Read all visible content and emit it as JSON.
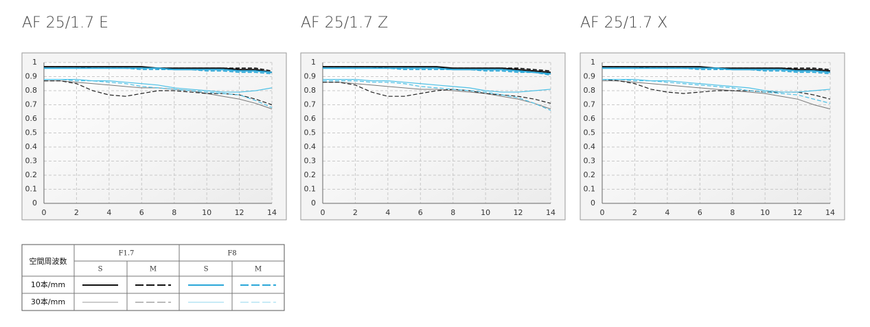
{
  "chart_data": [
    {
      "type": "line",
      "title": "AF 25/1.7 E",
      "x": [
        0,
        1,
        2,
        3,
        4,
        5,
        6,
        7,
        8,
        9,
        10,
        11,
        12,
        13,
        14
      ],
      "xlim": [
        0,
        14
      ],
      "xticks": [
        0,
        2,
        4,
        6,
        8,
        10,
        12,
        14
      ],
      "ylim": [
        0,
        1
      ],
      "yticks": [
        0,
        0.1,
        0.2,
        0.3,
        0.4,
        0.5,
        0.6,
        0.7,
        0.8,
        0.9,
        1
      ],
      "grid": true,
      "series": [
        {
          "color": "#111111",
          "dash": false,
          "width": 2,
          "values": [
            0.97,
            0.97,
            0.97,
            0.97,
            0.97,
            0.97,
            0.97,
            0.96,
            0.96,
            0.96,
            0.96,
            0.96,
            0.95,
            0.95,
            0.93
          ]
        },
        {
          "color": "#111111",
          "dash": true,
          "width": 1.6,
          "values": [
            0.97,
            0.97,
            0.97,
            0.96,
            0.96,
            0.96,
            0.96,
            0.96,
            0.96,
            0.96,
            0.96,
            0.96,
            0.96,
            0.96,
            0.94
          ]
        },
        {
          "color": "#2aa7d8",
          "dash": false,
          "width": 2,
          "values": [
            0.96,
            0.96,
            0.96,
            0.96,
            0.96,
            0.96,
            0.96,
            0.96,
            0.95,
            0.95,
            0.95,
            0.95,
            0.94,
            0.94,
            0.93
          ]
        },
        {
          "color": "#2aa7d8",
          "dash": true,
          "width": 1.6,
          "values": [
            0.96,
            0.96,
            0.96,
            0.96,
            0.96,
            0.96,
            0.95,
            0.95,
            0.95,
            0.95,
            0.94,
            0.94,
            0.93,
            0.93,
            0.92
          ]
        },
        {
          "color": "#777777",
          "dash": false,
          "width": 1,
          "values": [
            0.87,
            0.87,
            0.86,
            0.85,
            0.84,
            0.83,
            0.82,
            0.82,
            0.81,
            0.8,
            0.78,
            0.76,
            0.74,
            0.71,
            0.67
          ]
        },
        {
          "color": "#222222",
          "dash": true,
          "width": 1.2,
          "values": [
            0.87,
            0.87,
            0.85,
            0.8,
            0.77,
            0.76,
            0.78,
            0.8,
            0.8,
            0.79,
            0.78,
            0.78,
            0.77,
            0.74,
            0.7
          ]
        },
        {
          "color": "#4cc0e6",
          "dash": false,
          "width": 1.2,
          "values": [
            0.88,
            0.88,
            0.88,
            0.87,
            0.87,
            0.86,
            0.85,
            0.84,
            0.82,
            0.81,
            0.8,
            0.79,
            0.79,
            0.8,
            0.82
          ]
        },
        {
          "color": "#4cc0e6",
          "dash": true,
          "width": 1.2,
          "values": [
            0.88,
            0.88,
            0.87,
            0.87,
            0.86,
            0.85,
            0.83,
            0.82,
            0.81,
            0.8,
            0.79,
            0.78,
            0.77,
            0.73,
            0.68
          ]
        }
      ]
    },
    {
      "type": "line",
      "title": "AF 25/1.7 Z",
      "x": [
        0,
        1,
        2,
        3,
        4,
        5,
        6,
        7,
        8,
        9,
        10,
        11,
        12,
        13,
        14
      ],
      "xlim": [
        0,
        14
      ],
      "xticks": [
        0,
        2,
        4,
        6,
        8,
        10,
        12,
        14
      ],
      "ylim": [
        0,
        1
      ],
      "yticks": [
        0,
        0.1,
        0.2,
        0.3,
        0.4,
        0.5,
        0.6,
        0.7,
        0.8,
        0.9,
        1
      ],
      "grid": true,
      "series": [
        {
          "color": "#111111",
          "dash": false,
          "width": 2,
          "values": [
            0.97,
            0.97,
            0.97,
            0.97,
            0.97,
            0.97,
            0.97,
            0.97,
            0.96,
            0.96,
            0.96,
            0.96,
            0.95,
            0.94,
            0.93
          ]
        },
        {
          "color": "#111111",
          "dash": true,
          "width": 1.6,
          "values": [
            0.97,
            0.97,
            0.97,
            0.97,
            0.96,
            0.96,
            0.96,
            0.96,
            0.96,
            0.96,
            0.96,
            0.96,
            0.96,
            0.95,
            0.94
          ]
        },
        {
          "color": "#2aa7d8",
          "dash": false,
          "width": 2,
          "values": [
            0.96,
            0.96,
            0.96,
            0.96,
            0.96,
            0.96,
            0.96,
            0.96,
            0.95,
            0.95,
            0.95,
            0.95,
            0.94,
            0.93,
            0.92
          ]
        },
        {
          "color": "#2aa7d8",
          "dash": true,
          "width": 1.6,
          "values": [
            0.96,
            0.96,
            0.96,
            0.96,
            0.96,
            0.95,
            0.95,
            0.95,
            0.95,
            0.95,
            0.94,
            0.94,
            0.93,
            0.93,
            0.91
          ]
        },
        {
          "color": "#777777",
          "dash": false,
          "width": 1,
          "values": [
            0.86,
            0.86,
            0.85,
            0.84,
            0.83,
            0.82,
            0.81,
            0.81,
            0.8,
            0.79,
            0.78,
            0.76,
            0.74,
            0.71,
            0.67
          ]
        },
        {
          "color": "#222222",
          "dash": true,
          "width": 1.2,
          "values": [
            0.86,
            0.86,
            0.84,
            0.79,
            0.76,
            0.76,
            0.78,
            0.8,
            0.81,
            0.8,
            0.78,
            0.77,
            0.76,
            0.74,
            0.71
          ]
        },
        {
          "color": "#4cc0e6",
          "dash": false,
          "width": 1.2,
          "values": [
            0.88,
            0.88,
            0.88,
            0.87,
            0.87,
            0.86,
            0.85,
            0.84,
            0.83,
            0.82,
            0.8,
            0.79,
            0.79,
            0.8,
            0.81
          ]
        },
        {
          "color": "#4cc0e6",
          "dash": true,
          "width": 1.2,
          "values": [
            0.87,
            0.87,
            0.87,
            0.86,
            0.86,
            0.85,
            0.83,
            0.82,
            0.81,
            0.8,
            0.79,
            0.77,
            0.75,
            0.71,
            0.66
          ]
        }
      ]
    },
    {
      "type": "line",
      "title": "AF 25/1.7 X",
      "x": [
        0,
        1,
        2,
        3,
        4,
        5,
        6,
        7,
        8,
        9,
        10,
        11,
        12,
        13,
        14
      ],
      "xlim": [
        0,
        14
      ],
      "xticks": [
        0,
        2,
        4,
        6,
        8,
        10,
        12,
        14
      ],
      "ylim": [
        0,
        1
      ],
      "yticks": [
        0,
        0.1,
        0.2,
        0.3,
        0.4,
        0.5,
        0.6,
        0.7,
        0.8,
        0.9,
        1
      ],
      "grid": true,
      "series": [
        {
          "color": "#111111",
          "dash": false,
          "width": 2,
          "values": [
            0.97,
            0.97,
            0.97,
            0.97,
            0.97,
            0.97,
            0.97,
            0.96,
            0.96,
            0.96,
            0.96,
            0.96,
            0.95,
            0.95,
            0.94
          ]
        },
        {
          "color": "#111111",
          "dash": true,
          "width": 1.6,
          "values": [
            0.97,
            0.97,
            0.97,
            0.96,
            0.96,
            0.96,
            0.96,
            0.96,
            0.96,
            0.96,
            0.96,
            0.96,
            0.96,
            0.96,
            0.95
          ]
        },
        {
          "color": "#2aa7d8",
          "dash": false,
          "width": 2,
          "values": [
            0.96,
            0.96,
            0.96,
            0.96,
            0.96,
            0.96,
            0.96,
            0.96,
            0.95,
            0.95,
            0.95,
            0.95,
            0.94,
            0.94,
            0.93
          ]
        },
        {
          "color": "#2aa7d8",
          "dash": true,
          "width": 1.6,
          "values": [
            0.96,
            0.96,
            0.96,
            0.96,
            0.96,
            0.96,
            0.95,
            0.95,
            0.95,
            0.95,
            0.94,
            0.94,
            0.93,
            0.93,
            0.92
          ]
        },
        {
          "color": "#777777",
          "dash": false,
          "width": 1,
          "values": [
            0.87,
            0.87,
            0.86,
            0.85,
            0.84,
            0.83,
            0.82,
            0.81,
            0.8,
            0.79,
            0.78,
            0.76,
            0.74,
            0.7,
            0.67
          ]
        },
        {
          "color": "#222222",
          "dash": true,
          "width": 1.2,
          "values": [
            0.88,
            0.87,
            0.85,
            0.81,
            0.79,
            0.78,
            0.79,
            0.8,
            0.8,
            0.8,
            0.79,
            0.79,
            0.79,
            0.77,
            0.74
          ]
        },
        {
          "color": "#4cc0e6",
          "dash": false,
          "width": 1.2,
          "values": [
            0.88,
            0.88,
            0.88,
            0.87,
            0.87,
            0.86,
            0.85,
            0.84,
            0.83,
            0.82,
            0.8,
            0.79,
            0.79,
            0.8,
            0.81
          ]
        },
        {
          "color": "#4cc0e6",
          "dash": true,
          "width": 1.2,
          "values": [
            0.88,
            0.88,
            0.87,
            0.87,
            0.86,
            0.85,
            0.84,
            0.83,
            0.82,
            0.8,
            0.79,
            0.78,
            0.77,
            0.74,
            0.71
          ]
        }
      ]
    }
  ],
  "legend_table": {
    "corner": "空間周波数",
    "groups": [
      "F1.7",
      "F8"
    ],
    "columns": [
      "S",
      "M",
      "S",
      "M"
    ],
    "rows": [
      "10本/mm",
      "30本/mm"
    ]
  }
}
